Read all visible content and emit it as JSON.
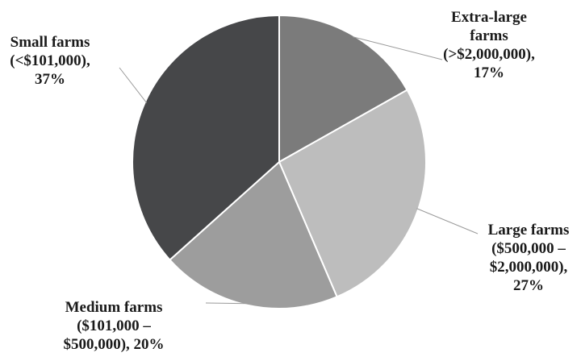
{
  "chart_data": {
    "type": "pie",
    "title": "",
    "slices": [
      {
        "name": "Extra-large farms (>$2,000,000)",
        "value": 17,
        "color": "#7b7b7b",
        "label_lines": [
          "Extra-large",
          "farms",
          "(>$2,000,000),",
          "17%"
        ]
      },
      {
        "name": "Large farms ($500,000 – $2,000,000)",
        "value": 27,
        "color": "#bdbdbd",
        "label_lines": [
          "Large farms",
          "($500,000 –",
          "$2,000,000),",
          "27%"
        ]
      },
      {
        "name": "Medium farms ($101,000 – $500,000)",
        "value": 20,
        "color": "#9d9d9d",
        "label_lines": [
          "Medium farms",
          "($101,000 –",
          "$500,000), 20%"
        ]
      },
      {
        "name": "Small farms (<$101,000)",
        "value": 37,
        "color": "#464749",
        "label_lines": [
          "Small farms",
          "(<$101,000),",
          "37%"
        ]
      }
    ]
  }
}
